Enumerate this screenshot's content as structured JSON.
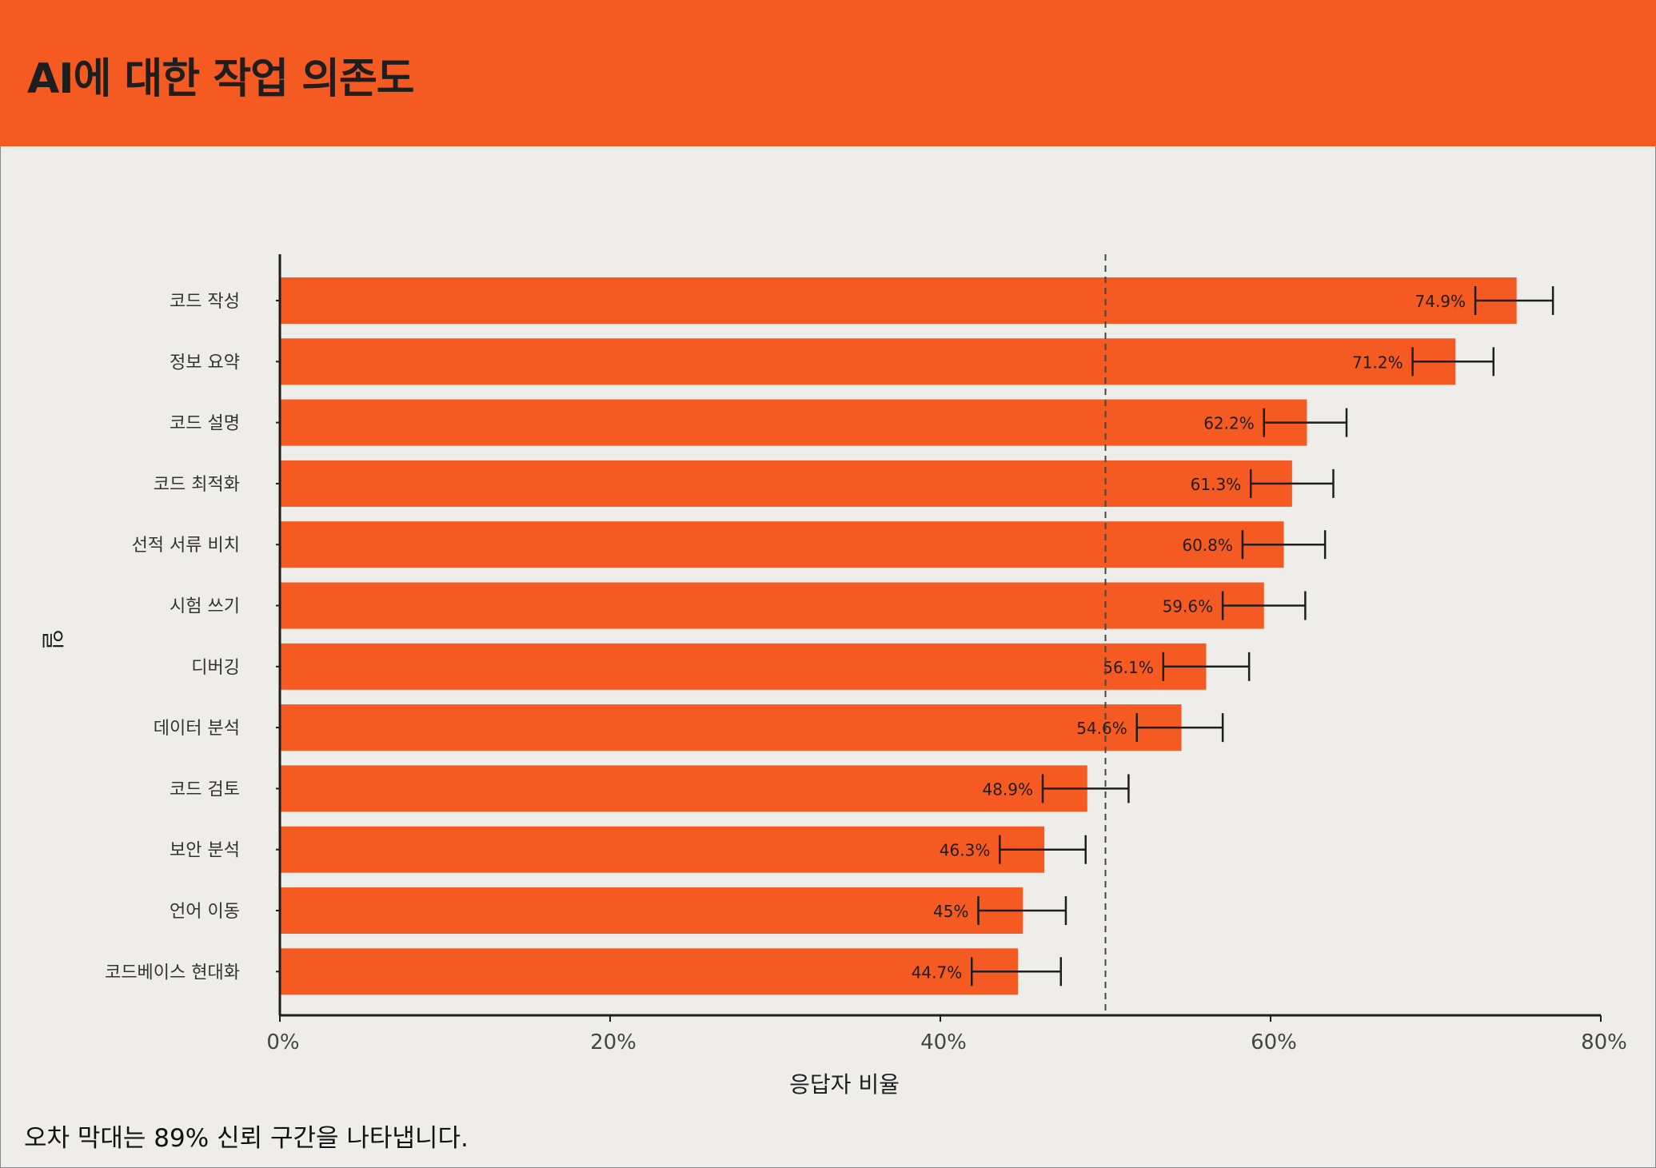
{
  "header": {
    "title": "AI에 대한 작업 의존도"
  },
  "footnote": "오차 막대는 89% 신뢰 구간을 나타냅니다.",
  "colors": {
    "accent": "#f55a23",
    "background": "#efedea",
    "text": "#1e1e1e"
  },
  "chart_data": {
    "type": "bar",
    "orientation": "horizontal",
    "title": "AI에 대한 작업 의존도",
    "xlabel": "응답자 비율",
    "ylabel": "일",
    "xlim": [
      0,
      80
    ],
    "xticks": [
      0,
      20,
      40,
      60,
      80
    ],
    "xtick_labels": [
      "0%",
      "20%",
      "40%",
      "60%",
      "80%"
    ],
    "reference_line": 50,
    "categories": [
      "코드 작성",
      "정보 요약",
      "코드 설명",
      "코드 최적화",
      "선적 서류 비치",
      "시험 쓰기",
      "디버깅",
      "데이터 분석",
      "코드 검토",
      "보안 분석",
      "언어 이동",
      "코드베이스 현대화"
    ],
    "values": [
      74.9,
      71.2,
      62.2,
      61.3,
      60.8,
      59.6,
      56.1,
      54.6,
      48.9,
      46.3,
      45,
      44.7
    ],
    "value_labels": [
      "74.9%",
      "71.2%",
      "62.2%",
      "61.3%",
      "60.8%",
      "59.6%",
      "56.1%",
      "54.6%",
      "48.9%",
      "46.3%",
      "45%",
      "44.7%"
    ],
    "ci_low": [
      72.4,
      68.6,
      59.6,
      58.8,
      58.3,
      57.1,
      53.5,
      51.9,
      46.2,
      43.6,
      42.3,
      41.9
    ],
    "ci_high": [
      77.1,
      73.5,
      64.6,
      63.8,
      63.3,
      62.1,
      58.7,
      57.1,
      51.4,
      48.8,
      47.6,
      47.3
    ]
  }
}
